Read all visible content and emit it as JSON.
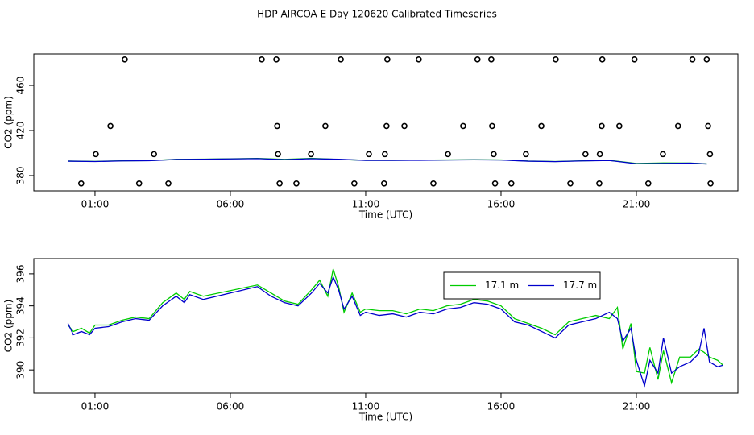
{
  "chart_data": [
    {
      "type": "line",
      "title": "HDP AIRCOA E  Day 120620  Calibrated Timeseries",
      "x_label": "Time (UTC)",
      "y_label": "CO2 (ppm)",
      "xlim": [
        -1.26,
        24.75
      ],
      "ylim": [
        366.4,
        487.9
      ],
      "xticks": [
        {
          "value": 1,
          "label": "01:00"
        },
        {
          "value": 6,
          "label": "06:00"
        },
        {
          "value": 11,
          "label": "11:00"
        },
        {
          "value": 16,
          "label": "16:00"
        },
        {
          "value": 21,
          "label": "21:00"
        }
      ],
      "yticks": [
        380,
        420,
        460
      ],
      "x": [
        0,
        1,
        2,
        3,
        4,
        5,
        6,
        7,
        8,
        9,
        10,
        11,
        12,
        13,
        14,
        15,
        16,
        17,
        18,
        19,
        20,
        21,
        22,
        23,
        23.6
      ],
      "series": [
        {
          "type": "line",
          "color": "#00cc00",
          "values": [
            392.9,
            392.6,
            393.1,
            393.3,
            394.4,
            394.6,
            394.9,
            395.2,
            394.4,
            395.3,
            394.3,
            393.6,
            393.6,
            393.7,
            393.9,
            394.1,
            393.9,
            392.9,
            392.5,
            393.1,
            393.5,
            390.8,
            391.2,
            391.1,
            390.4
          ]
        },
        {
          "type": "line",
          "color": "#0000cc",
          "values": [
            392.8,
            392.5,
            393.0,
            393.2,
            394.3,
            394.5,
            394.8,
            395.1,
            394.2,
            395.0,
            394.5,
            393.5,
            393.5,
            393.6,
            393.8,
            394.0,
            393.8,
            392.8,
            392.4,
            393.0,
            393.4,
            390.5,
            390.8,
            391.0,
            390.3
          ]
        },
        {
          "type": "points",
          "color": "#000000",
          "x": [
            2.1,
            7.16,
            7.7,
            10.08,
            11.8,
            12.96,
            15.13,
            15.64,
            18.02,
            19.74,
            20.93,
            23.07,
            23.6,
            1.57,
            7.73,
            9.51,
            11.77,
            12.43,
            14.6,
            15.67,
            17.49,
            19.72,
            20.37,
            22.54,
            23.65,
            1.03,
            3.18,
            7.76,
            8.98,
            11.12,
            11.71,
            14.04,
            15.73,
            16.92,
            19.12,
            19.65,
            21.98,
            23.72,
            0.49,
            2.63,
            3.71,
            7.82,
            8.44,
            10.58,
            11.68,
            13.5,
            15.78,
            16.38,
            18.56,
            19.63,
            21.44,
            23.74
          ],
          "values": [
            483,
            483,
            483,
            483,
            483,
            483,
            483,
            483,
            483,
            483,
            483,
            483,
            483,
            424,
            424,
            424,
            424,
            424,
            424,
            424,
            424,
            424,
            424,
            424,
            424,
            399,
            399,
            399,
            399,
            399,
            399,
            399,
            399,
            399,
            399,
            399,
            399,
            399,
            373,
            373,
            373,
            373,
            373,
            373,
            373,
            373,
            373,
            373,
            373,
            373,
            373,
            373
          ]
        }
      ]
    },
    {
      "type": "line",
      "x_label": "Time (UTC)",
      "y_label": "CO2 (ppm)",
      "xlim": [
        -1.26,
        24.75
      ],
      "ylim": [
        388.55,
        396.95
      ],
      "xticks": [
        {
          "value": 1,
          "label": "01:00"
        },
        {
          "value": 6,
          "label": "06:00"
        },
        {
          "value": 11,
          "label": "11:00"
        },
        {
          "value": 16,
          "label": "16:00"
        },
        {
          "value": 21,
          "label": "21:00"
        }
      ],
      "yticks": [
        390,
        392,
        394,
        396
      ],
      "legend": true,
      "x": [
        0,
        0.2,
        0.5,
        0.8,
        1,
        1.5,
        2,
        2.5,
        3,
        3.5,
        4,
        4.3,
        4.5,
        5,
        7,
        7.5,
        8,
        8.5,
        9,
        9.3,
        9.6,
        9.8,
        10,
        10.2,
        10.5,
        10.8,
        11,
        11.5,
        12,
        12.5,
        13,
        13.5,
        14,
        14.5,
        15,
        15.5,
        16,
        16.5,
        17,
        17.5,
        18,
        18.5,
        19,
        19.5,
        20,
        20.3,
        20.5,
        20.8,
        21,
        21.3,
        21.5,
        21.8,
        22,
        22.3,
        22.6,
        23,
        23.3,
        23.5,
        23.7,
        24,
        24.2
      ],
      "series": [
        {
          "type": "line",
          "name": "17.1 m",
          "color": "#00cc00",
          "values": [
            392.8,
            392.4,
            392.6,
            392.3,
            392.8,
            392.8,
            393.1,
            393.3,
            393.2,
            394.2,
            394.8,
            394.4,
            394.9,
            394.6,
            395.3,
            394.8,
            394.3,
            394.1,
            395.0,
            395.6,
            394.6,
            396.3,
            395.2,
            393.6,
            394.8,
            393.6,
            393.8,
            393.7,
            393.7,
            393.5,
            393.8,
            393.7,
            394.0,
            394.1,
            394.4,
            394.3,
            394.0,
            393.2,
            392.9,
            392.6,
            392.2,
            393.0,
            393.2,
            393.4,
            393.2,
            393.9,
            391.3,
            392.9,
            389.9,
            389.8,
            391.4,
            389.4,
            391.2,
            389.2,
            390.8,
            390.8,
            391.3,
            391.1,
            390.8,
            390.6,
            390.3
          ]
        },
        {
          "type": "line",
          "name": "17.7 m",
          "color": "#0000cc",
          "values": [
            392.9,
            392.2,
            392.4,
            392.2,
            392.6,
            392.7,
            393.0,
            393.2,
            393.1,
            394.0,
            394.6,
            394.2,
            394.7,
            394.4,
            395.2,
            394.6,
            394.2,
            394.0,
            394.8,
            395.4,
            394.8,
            395.8,
            395.0,
            393.8,
            394.6,
            393.4,
            393.6,
            393.4,
            393.5,
            393.3,
            393.6,
            393.5,
            393.8,
            393.9,
            394.2,
            394.1,
            393.8,
            393.0,
            392.8,
            392.4,
            392.0,
            392.8,
            393.0,
            393.2,
            393.6,
            393.2,
            391.8,
            392.6,
            390.6,
            389.0,
            390.6,
            389.8,
            392.0,
            389.8,
            390.2,
            390.5,
            391.0,
            392.6,
            390.5,
            390.2,
            390.3
          ]
        }
      ]
    }
  ]
}
